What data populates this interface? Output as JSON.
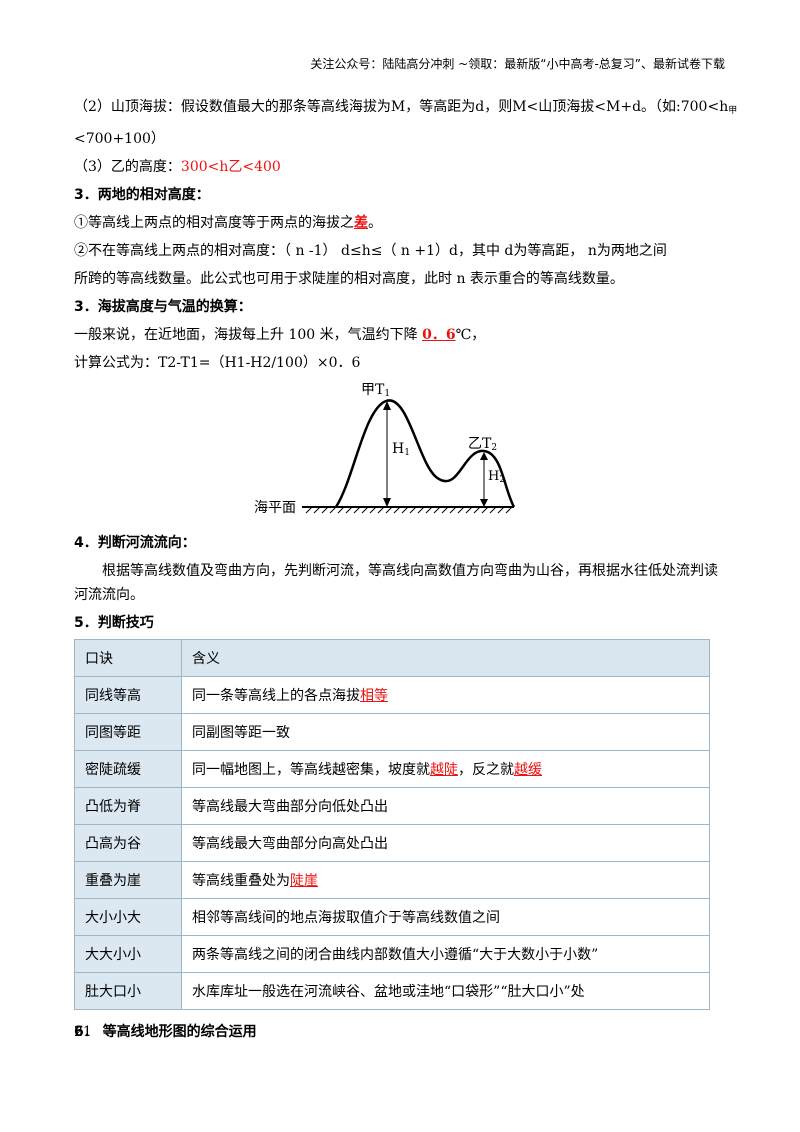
{
  "header": "关注公众号：陆陆高分冲刺 ~领取：最新版“小中高考-总复习”、最新试卷下载",
  "line2a": "（2）山顶海拔：假设数值最大的那条等高线海拔为M，等高距为d，则M<山顶海拔<M+d。（如:700<h",
  "line2a_sub": "甲",
  "line2b": "<700+100）",
  "line3_prefix": "（3）乙的高度：",
  "line3_red": "300<h乙<400",
  "h3": "3．两地的相对高度：",
  "rel1_prefix": "①等高线上两点的相对高度等于两点的海拔之",
  "rel1_red": "差",
  "rel1_suffix": "。",
  "rel2a": "②不在等高线上两点的相对高度：（ n -1） d≤h≤（ n +1）d，其中 d为等高距， n为两地之间",
  "rel2b": "所跨的等高线数量。此公式也可用于求陡崖的相对高度，此时 n 表示重合的等高线数量。",
  "h3b": "3．海拔高度与气温的换算：",
  "temp1_prefix": "一般来说，在近地面，海拔每上升 100 米，气温约下降 ",
  "temp1_red": "0．6",
  "temp1_suffix": "℃，",
  "temp2": "计算公式为：T2-T1=（H1-H2/100）×0．6",
  "figure": {
    "label_jia": "甲T",
    "sub_1": "1",
    "label_yi": "乙T",
    "sub_2": "2",
    "label_h1": "H",
    "label_h2": "H",
    "sea_level": "海平面"
  },
  "h4": "4．判断河流流向：",
  "p4": "根据等高线数值及弯曲方向，先判断河流，等高线向高数值方向弯曲为山谷，再根据水往低处流判读河流流向。",
  "h5": "5．判断技巧",
  "table": {
    "headers": [
      "口诀",
      "含义"
    ],
    "rows": [
      {
        "k": "同线等高",
        "pre": "同一条等高线上的各点海拔",
        "red": "相等",
        "post": ""
      },
      {
        "k": "同图等距",
        "pre": "同副图等距一致",
        "red": "",
        "post": ""
      },
      {
        "k": "密陡疏缓",
        "pre": "同一幅地图上，等高线越密集，坡度就",
        "red": "越陡",
        "post": "，反之就",
        "red2": "越缓"
      },
      {
        "k": "凸低为脊",
        "pre": "等高线最大弯曲部分向低处凸出",
        "red": "",
        "post": ""
      },
      {
        "k": "凸高为谷",
        "pre": "等高线最大弯曲部分向高处凸出",
        "red": "",
        "post": ""
      },
      {
        "k": "重叠为崖",
        "pre": "等高线重叠处为",
        "red": "陡崖",
        "post": ""
      },
      {
        "k": "大小小大",
        "pre": "相邻等高线间的地点海拔取值介于等高线数值之间",
        "red": "",
        "post": ""
      },
      {
        "k": "大大小小",
        "pre": "两条等高线之间的闭合曲线内部数值大小遵循“大于大数小于小数”",
        "red": "",
        "post": ""
      },
      {
        "k": "肚大口小",
        "pre": "水库库址一般选在河流峡谷、盆地或洼地“口袋形”“肚大口小”处",
        "red": "",
        "post": ""
      }
    ]
  },
  "h6": "6．  等高线地形图的综合运用",
  "page_number": "21"
}
